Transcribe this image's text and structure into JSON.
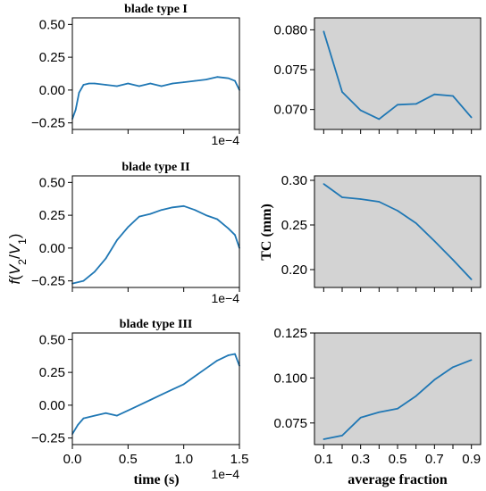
{
  "figure": {
    "left_ylabel": "f(V2/V1)",
    "left_ylabel_parts": {
      "f": "f",
      "open": "(",
      "v": "V",
      "s2": "2",
      "slash": "/",
      "v2": "V",
      "s1": "1",
      "close": ")"
    },
    "right_ylabel": "TC (mm)",
    "left_xlabel": "time (s)",
    "right_xlabel": "average fraction",
    "offset_text": "1e−4",
    "colors": {
      "line": "#1f77b4",
      "right_bg": "#d3d3d3",
      "axis": "#000000"
    }
  },
  "chart_data": [
    {
      "type": "line",
      "title": "blade type I",
      "x": [
        0.0,
        0.03,
        0.06,
        0.1,
        0.15,
        0.2,
        0.3,
        0.4,
        0.5,
        0.6,
        0.7,
        0.8,
        0.9,
        1.0,
        1.1,
        1.2,
        1.3,
        1.4,
        1.46,
        1.5
      ],
      "values": [
        -0.22,
        -0.15,
        -0.02,
        0.04,
        0.05,
        0.05,
        0.04,
        0.03,
        0.05,
        0.03,
        0.05,
        0.03,
        0.05,
        0.06,
        0.07,
        0.08,
        0.1,
        0.09,
        0.07,
        0.0
      ],
      "xlim": [
        0.0,
        1.5
      ],
      "ylim": [
        -0.3,
        0.55
      ],
      "yticks": [
        "0.50",
        "0.25",
        "0.00",
        "−0.25"
      ],
      "ytick_values": [
        0.5,
        0.25,
        0.0,
        -0.25
      ],
      "grid": false
    },
    {
      "type": "line",
      "title": "blade type II",
      "x": [
        0.0,
        0.1,
        0.2,
        0.3,
        0.4,
        0.5,
        0.6,
        0.7,
        0.8,
        0.9,
        1.0,
        1.1,
        1.2,
        1.3,
        1.4,
        1.46,
        1.5
      ],
      "values": [
        -0.27,
        -0.25,
        -0.18,
        -0.08,
        0.06,
        0.16,
        0.24,
        0.26,
        0.29,
        0.31,
        0.32,
        0.29,
        0.25,
        0.22,
        0.15,
        0.1,
        0.0
      ],
      "xlim": [
        0.0,
        1.5
      ],
      "ylim": [
        -0.3,
        0.55
      ],
      "yticks": [
        "0.50",
        "0.25",
        "0.00",
        "−0.25"
      ],
      "ytick_values": [
        0.5,
        0.25,
        0.0,
        -0.25
      ],
      "grid": false
    },
    {
      "type": "line",
      "title": "blade type III",
      "x": [
        0.0,
        0.05,
        0.1,
        0.2,
        0.3,
        0.4,
        0.5,
        0.6,
        0.7,
        0.8,
        0.9,
        1.0,
        1.1,
        1.2,
        1.3,
        1.4,
        1.46,
        1.5
      ],
      "values": [
        -0.22,
        -0.15,
        -0.1,
        -0.08,
        -0.06,
        -0.08,
        -0.04,
        0.0,
        0.04,
        0.08,
        0.12,
        0.16,
        0.22,
        0.28,
        0.34,
        0.38,
        0.39,
        0.3
      ],
      "xlim": [
        0.0,
        1.5
      ],
      "ylim": [
        -0.3,
        0.55
      ],
      "xticks": [
        "0.0",
        "0.5",
        "1.0",
        "1.5"
      ],
      "xtick_values": [
        0.0,
        0.5,
        1.0,
        1.5
      ],
      "yticks": [
        "0.50",
        "0.25",
        "0.00",
        "−0.25"
      ],
      "ytick_values": [
        0.5,
        0.25,
        0.0,
        -0.25
      ],
      "xlabel": "time (s)",
      "grid": false
    },
    {
      "type": "line",
      "x": [
        0.1,
        0.2,
        0.3,
        0.4,
        0.5,
        0.6,
        0.7,
        0.8,
        0.9
      ],
      "values": [
        0.0798,
        0.0722,
        0.0699,
        0.0688,
        0.0706,
        0.0707,
        0.0719,
        0.0717,
        0.069
      ],
      "xlim": [
        0.05,
        0.95
      ],
      "ylim": [
        0.0675,
        0.0815
      ],
      "yticks": [
        "0.080",
        "0.075",
        "0.070"
      ],
      "ytick_values": [
        0.08,
        0.075,
        0.07
      ],
      "grid": false
    },
    {
      "type": "line",
      "x": [
        0.1,
        0.2,
        0.3,
        0.4,
        0.5,
        0.6,
        0.7,
        0.8,
        0.9
      ],
      "values": [
        0.296,
        0.281,
        0.279,
        0.276,
        0.266,
        0.252,
        0.232,
        0.211,
        0.189
      ],
      "xlim": [
        0.05,
        0.95
      ],
      "ylim": [
        0.18,
        0.305
      ],
      "yticks": [
        "0.30",
        "0.25",
        "0.20"
      ],
      "ytick_values": [
        0.3,
        0.25,
        0.2
      ],
      "ylabel": "TC (mm)",
      "grid": false
    },
    {
      "type": "line",
      "x": [
        0.1,
        0.2,
        0.3,
        0.4,
        0.5,
        0.6,
        0.7,
        0.8,
        0.9
      ],
      "values": [
        0.066,
        0.068,
        0.078,
        0.081,
        0.083,
        0.09,
        0.099,
        0.106,
        0.11
      ],
      "xlim": [
        0.05,
        0.95
      ],
      "ylim": [
        0.063,
        0.125
      ],
      "xticks": [
        "0.1",
        "0.3",
        "0.5",
        "0.7",
        "0.9"
      ],
      "xtick_values": [
        0.1,
        0.3,
        0.5,
        0.7,
        0.9
      ],
      "yticks": [
        "0.125",
        "0.100",
        "0.075"
      ],
      "ytick_values": [
        0.125,
        0.1,
        0.075
      ],
      "xlabel": "average fraction",
      "grid": false
    }
  ]
}
